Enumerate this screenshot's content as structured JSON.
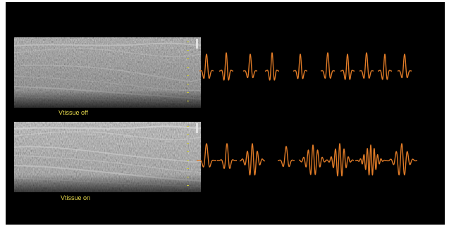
{
  "panels": [
    {
      "caption": "Vtissue off"
    },
    {
      "caption": "Vtissue on"
    }
  ],
  "colors": {
    "background": "#000000",
    "caption": "#e3d64b",
    "pulse": "#e07b27",
    "scale_marks": "#c8c83a"
  }
}
